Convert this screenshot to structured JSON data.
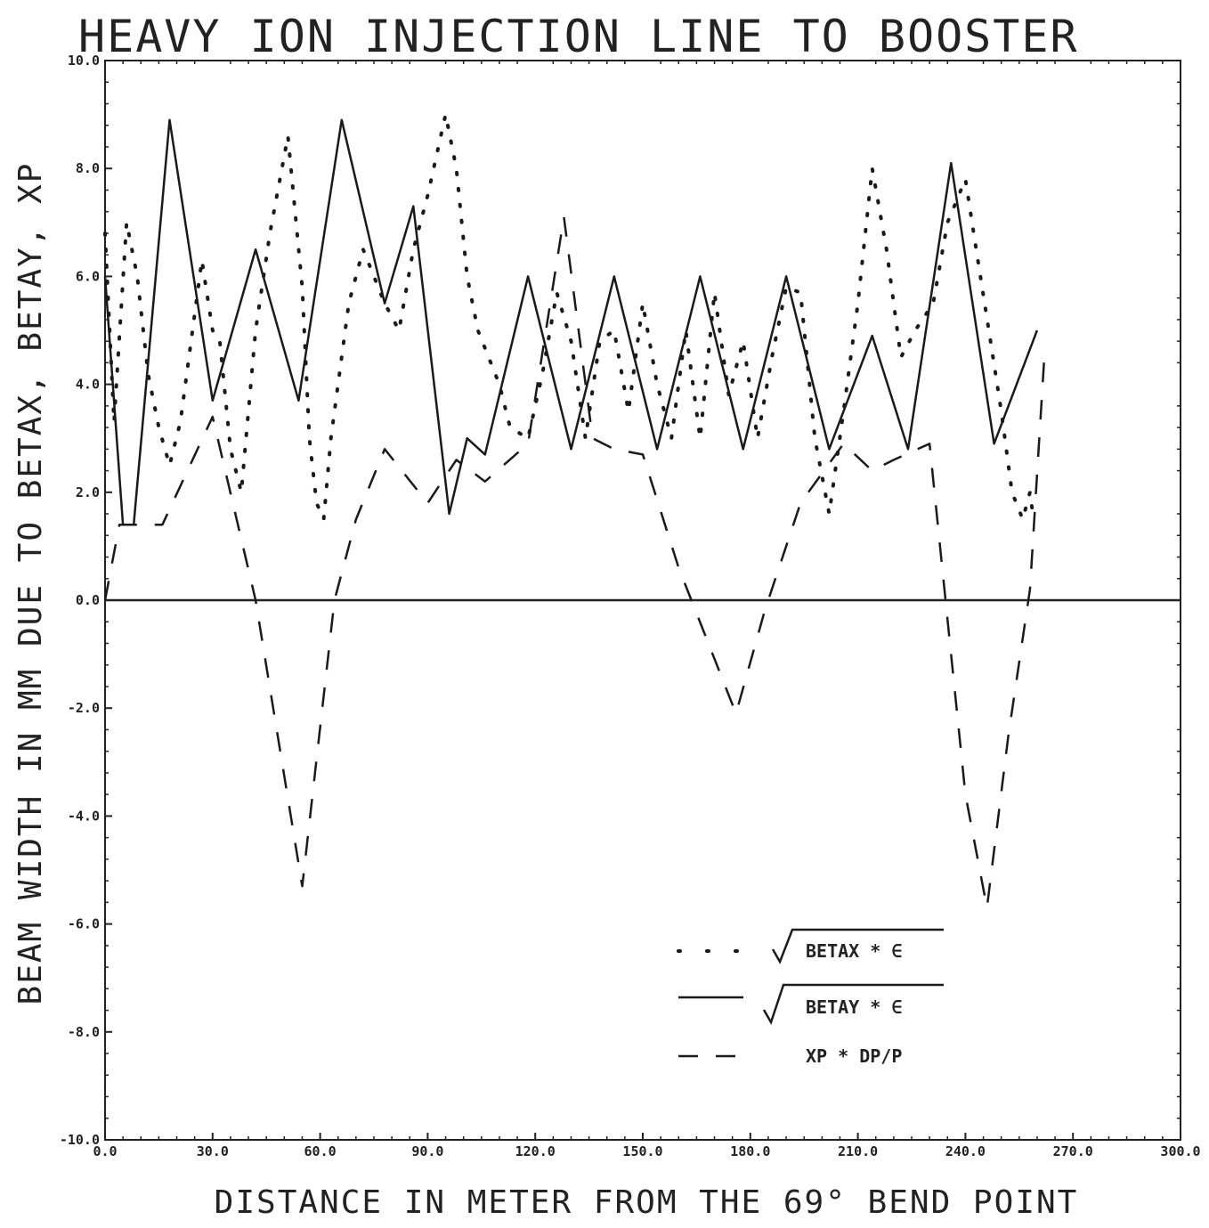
{
  "chart_data": {
    "type": "line",
    "title": "HEAVY ION INJECTION LINE TO BOOSTER",
    "xlabel": "DISTANCE IN METER FROM THE 69° BEND POINT",
    "ylabel": "BEAM WIDTH IN MM DUE TO BETAX, BETAY, XP",
    "xlim": [
      0,
      300
    ],
    "ylim": [
      -10,
      10
    ],
    "xticks": [
      "0.0",
      "30.0",
      "60.0",
      "90.0",
      "120.0",
      "150.0",
      "180.0",
      "210.0",
      "240.0",
      "270.0",
      "300.0"
    ],
    "yticks": [
      "-10.0",
      "-8.0",
      "-6.0",
      "-4.0",
      "-2.0",
      "0.0",
      "2.0",
      "4.0",
      "6.0",
      "8.0",
      "10.0"
    ],
    "grid": false,
    "legend_position": "bottom-center",
    "series": [
      {
        "name": "BETAX * ∈",
        "legend_prefix": "√",
        "style": "dotted",
        "x": [
          0,
          2.5,
          6,
          9,
          12,
          15,
          18,
          21,
          27,
          30,
          32,
          35,
          38,
          42,
          46,
          51,
          55,
          57,
          59,
          61,
          63,
          65,
          68,
          72,
          78,
          82,
          86,
          90,
          95,
          98,
          101,
          104,
          110,
          113,
          118,
          122,
          126,
          130,
          134,
          138,
          142,
          146,
          150,
          154,
          158,
          162,
          166,
          170,
          174,
          178,
          182,
          186,
          190,
          194,
          198,
          202,
          206,
          210,
          214,
          218,
          222,
          226,
          231,
          235,
          240,
          243,
          247,
          250,
          253,
          256,
          258,
          259
        ],
        "y": [
          6.8,
          3.3,
          7.0,
          6.0,
          4.2,
          3.2,
          2.5,
          3.3,
          6.3,
          5.0,
          4.8,
          2.8,
          2.0,
          5.0,
          6.8,
          8.6,
          5.8,
          3.0,
          1.8,
          1.5,
          3.0,
          4.0,
          5.5,
          6.5,
          5.5,
          5.0,
          6.5,
          7.5,
          9.0,
          8.0,
          6.0,
          5.0,
          4.0,
          3.2,
          3.0,
          4.2,
          5.7,
          4.8,
          3.0,
          4.8,
          5.0,
          3.5,
          5.5,
          4.0,
          3.0,
          5.0,
          3.0,
          5.7,
          3.8,
          4.8,
          3.0,
          4.5,
          5.8,
          5.7,
          3.0,
          1.6,
          3.5,
          5.5,
          8.0,
          6.5,
          4.5,
          5.0,
          5.5,
          7.0,
          7.8,
          6.5,
          4.8,
          3.5,
          2.0,
          1.5,
          2.0,
          1.5
        ]
      },
      {
        "name": "BETAY * ∈",
        "legend_prefix": "√",
        "style": "solid",
        "x": [
          0,
          5,
          8,
          18,
          30,
          42,
          54,
          66,
          78,
          86,
          96,
          101,
          106,
          118,
          130,
          142,
          154,
          166,
          178,
          190,
          202,
          214,
          224,
          236,
          248,
          260
        ],
        "y": [
          6.0,
          1.4,
          1.4,
          8.9,
          3.7,
          6.5,
          3.7,
          8.9,
          5.5,
          7.3,
          1.6,
          3.0,
          2.7,
          6.0,
          2.8,
          6.0,
          2.8,
          6.0,
          2.8,
          6.0,
          2.8,
          4.9,
          2.8,
          8.1,
          2.9,
          5.0
        ]
      },
      {
        "name": "XP * DP/P",
        "legend_prefix": "",
        "style": "dashed",
        "x": [
          0,
          4,
          8,
          16,
          30,
          42,
          55,
          64,
          70,
          78,
          84,
          90,
          98,
          106,
          118,
          128,
          136,
          142,
          150,
          160,
          176,
          184,
          194,
          206,
          214,
          220,
          230,
          240,
          246,
          252,
          258,
          262
        ],
        "y": [
          0.0,
          1.4,
          1.4,
          1.4,
          3.4,
          0.0,
          -5.3,
          0.0,
          1.5,
          2.8,
          2.3,
          1.8,
          2.6,
          2.2,
          2.9,
          7.1,
          3.0,
          2.8,
          2.7,
          0.6,
          -2.1,
          -0.2,
          1.8,
          2.9,
          2.4,
          2.6,
          2.9,
          -3.6,
          -5.7,
          -2.5,
          0.2,
          4.5
        ]
      }
    ]
  }
}
